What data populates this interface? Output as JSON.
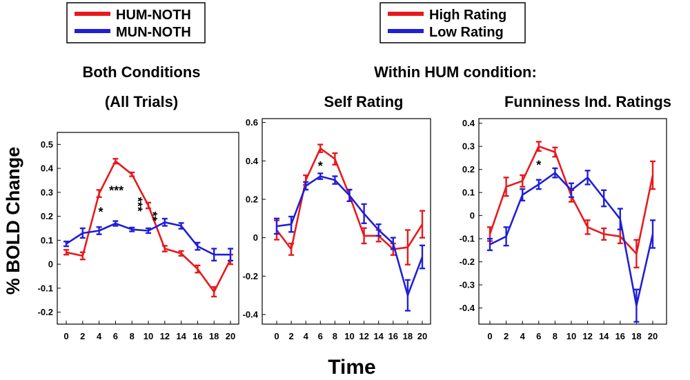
{
  "colors": {
    "red": "#e8191c",
    "blue": "#1f1fd8",
    "axis": "#000000"
  },
  "legends": [
    {
      "items": [
        {
          "label": "HUM-NOTH",
          "color": "#e8191c"
        },
        {
          "label": "MUN-NOTH",
          "color": "#1f1fd8"
        }
      ]
    },
    {
      "items": [
        {
          "label": "High Rating",
          "color": "#e8191c"
        },
        {
          "label": "Low Rating",
          "color": "#1f1fd8"
        }
      ]
    }
  ],
  "headings": {
    "left_line1": "Both Conditions",
    "left_line2": "(All Trials)",
    "group": "Within HUM condition:"
  },
  "ylabel": "% BOLD Change",
  "xlabel": "Time",
  "chart_data": [
    {
      "type": "line",
      "title": "Both Conditions (All Trials)",
      "x": [
        0,
        2,
        4,
        6,
        8,
        10,
        12,
        14,
        16,
        18,
        20
      ],
      "ylim": [
        -0.25,
        0.55
      ],
      "yticks": [
        -0.2,
        -0.1,
        0,
        0.1,
        0.2,
        0.3,
        0.4,
        0.5
      ],
      "ytick_labels": [
        "-0.2",
        "-0.1",
        "0",
        "0.1",
        "0.2",
        "0.3",
        "0.4",
        "0.5"
      ],
      "series": [
        {
          "name": "HUM-NOTH",
          "color": "#e8191c",
          "values": [
            0.05,
            0.035,
            0.295,
            0.43,
            0.375,
            0.245,
            0.065,
            0.045,
            -0.02,
            -0.115,
            0.02
          ],
          "errors": [
            0.01,
            0.015,
            0.015,
            0.01,
            0.008,
            0.012,
            0.012,
            0.01,
            0.015,
            0.02,
            0.02
          ]
        },
        {
          "name": "MUN-NOTH",
          "color": "#1f1fd8",
          "values": [
            0.085,
            0.13,
            0.14,
            0.17,
            0.145,
            0.14,
            0.175,
            0.16,
            0.075,
            0.04,
            0.04
          ],
          "errors": [
            0.01,
            0.02,
            0.015,
            0.01,
            0.008,
            0.01,
            0.015,
            0.012,
            0.015,
            0.025,
            0.025
          ]
        }
      ],
      "annotations": [
        {
          "x": 4.2,
          "y": 0.2,
          "text": "*"
        },
        {
          "x": 6.1,
          "y": 0.29,
          "text": "***"
        },
        {
          "x": 8.2,
          "y": 0.25,
          "text": "***"
        },
        {
          "x": 10.0,
          "y": 0.2,
          "text": "**"
        }
      ]
    },
    {
      "type": "line",
      "title": "Self Rating",
      "x": [
        0,
        2,
        4,
        6,
        8,
        10,
        12,
        14,
        16,
        18,
        20
      ],
      "ylim": [
        -0.45,
        0.62
      ],
      "yticks": [
        -0.4,
        -0.2,
        0,
        0.2,
        0.4,
        0.6
      ],
      "ytick_labels": [
        "-0.4",
        "-0.2",
        "0",
        "0.2",
        "0.4",
        "0.6"
      ],
      "series": [
        {
          "name": "High Rating",
          "color": "#e8191c",
          "values": [
            0.04,
            -0.06,
            0.3,
            0.465,
            0.41,
            0.22,
            0.01,
            0.01,
            -0.06,
            -0.05,
            0.07
          ],
          "errors": [
            0.05,
            0.03,
            0.025,
            0.02,
            0.03,
            0.03,
            0.04,
            0.03,
            0.03,
            0.09,
            0.07
          ]
        },
        {
          "name": "Low Rating",
          "color": "#1f1fd8",
          "values": [
            0.06,
            0.07,
            0.27,
            0.32,
            0.3,
            0.22,
            0.125,
            0.04,
            -0.03,
            -0.3,
            -0.1
          ],
          "errors": [
            0.04,
            0.04,
            0.02,
            0.015,
            0.02,
            0.03,
            0.05,
            0.03,
            0.03,
            0.08,
            0.06
          ]
        }
      ],
      "annotations": [
        {
          "x": 6.0,
          "y": 0.35,
          "text": "*"
        }
      ]
    },
    {
      "type": "line",
      "title": "Funniness Ind. Ratings",
      "x": [
        0,
        2,
        4,
        6,
        8,
        10,
        12,
        14,
        16,
        18,
        20
      ],
      "ylim": [
        -0.47,
        0.42
      ],
      "yticks": [
        -0.4,
        -0.3,
        -0.2,
        -0.1,
        0,
        0.1,
        0.2,
        0.3,
        0.4
      ],
      "ytick_labels": [
        "-0.4",
        "-0.3",
        "-0.2",
        "-0.1",
        "0",
        "0.1",
        "0.2",
        "0.3",
        "0.4"
      ],
      "series": [
        {
          "name": "High Rating",
          "color": "#e8191c",
          "values": [
            -0.08,
            0.125,
            0.15,
            0.3,
            0.275,
            0.085,
            -0.05,
            -0.08,
            -0.09,
            -0.165,
            0.175
          ],
          "errors": [
            0.03,
            0.04,
            0.025,
            0.02,
            0.02,
            0.025,
            0.03,
            0.025,
            0.03,
            0.06,
            0.06
          ]
        },
        {
          "name": "Low Rating",
          "color": "#1f1fd8",
          "values": [
            -0.125,
            -0.09,
            0.09,
            0.135,
            0.185,
            0.11,
            0.165,
            0.075,
            -0.015,
            -0.39,
            -0.08
          ],
          "errors": [
            0.025,
            0.04,
            0.025,
            0.02,
            0.02,
            0.03,
            0.03,
            0.035,
            0.045,
            0.07,
            0.06
          ]
        }
      ],
      "annotations": [
        {
          "x": 6.0,
          "y": 0.2,
          "text": "*"
        }
      ]
    }
  ]
}
